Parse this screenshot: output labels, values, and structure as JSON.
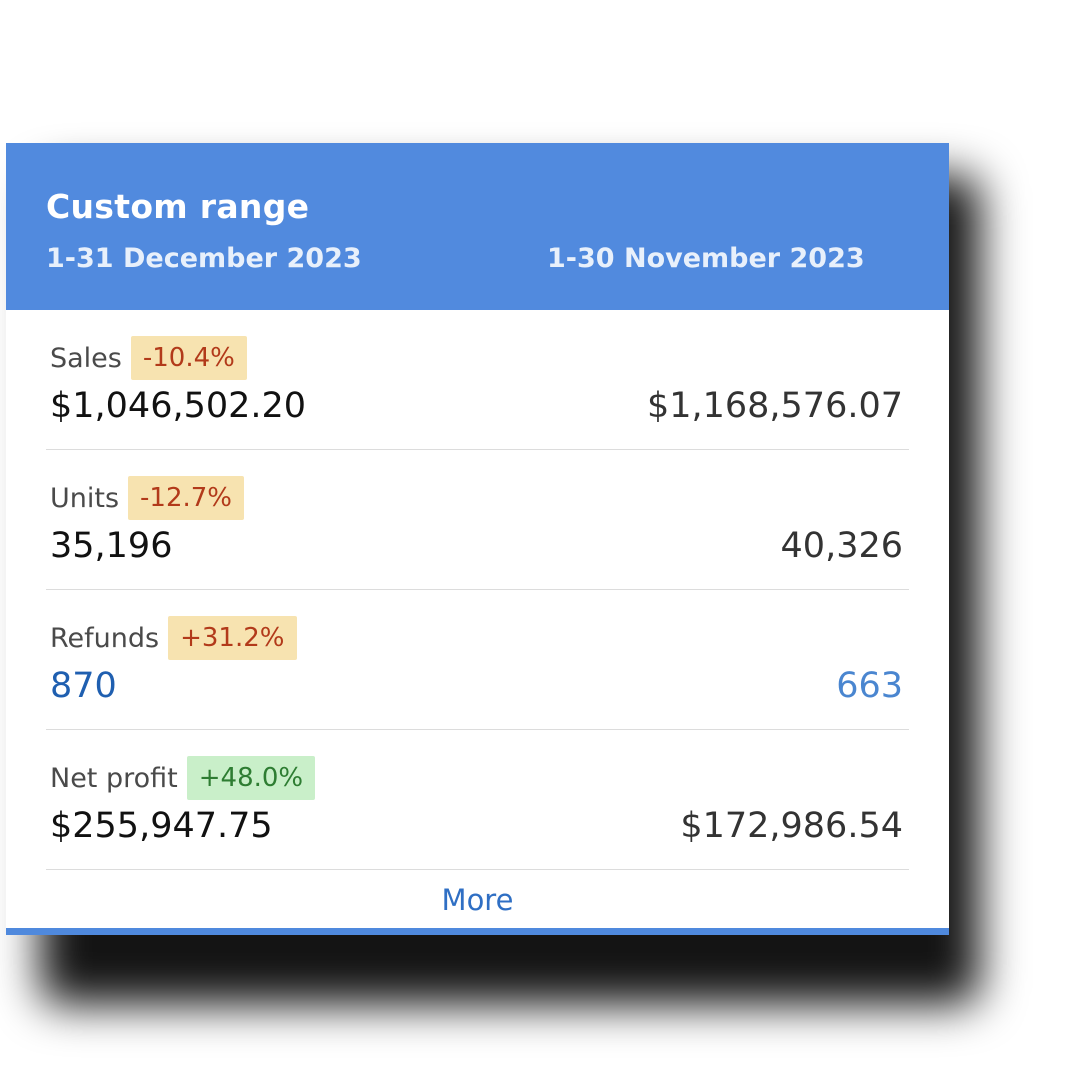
{
  "header": {
    "title": "Custom range",
    "current_period": "1-31 December 2023",
    "previous_period": "1-30 November 2023"
  },
  "metrics": [
    {
      "label": "Sales",
      "change": "-10.4%",
      "change_trend": "negative",
      "current": "$1,046,502.20",
      "previous": "$1,168,576.07"
    },
    {
      "label": "Units",
      "change": "-12.7%",
      "change_trend": "negative",
      "current": "35,196",
      "previous": "40,326"
    },
    {
      "label": "Refunds",
      "change": "+31.2%",
      "change_trend": "negative",
      "current": "870",
      "previous": "663"
    },
    {
      "label": "Net profit",
      "change": "+48.0%",
      "change_trend": "positive",
      "current": "$255,947.75",
      "previous": "$172,986.54"
    }
  ],
  "footer": {
    "more_label": "More"
  },
  "colors": {
    "header_bg": "#518ade",
    "badge_negative_bg": "#f7e3b0",
    "badge_negative_text": "#b23a1a",
    "badge_positive_bg": "#c9efc9",
    "badge_positive_text": "#2e7d32",
    "link": "#1f5fb0"
  }
}
